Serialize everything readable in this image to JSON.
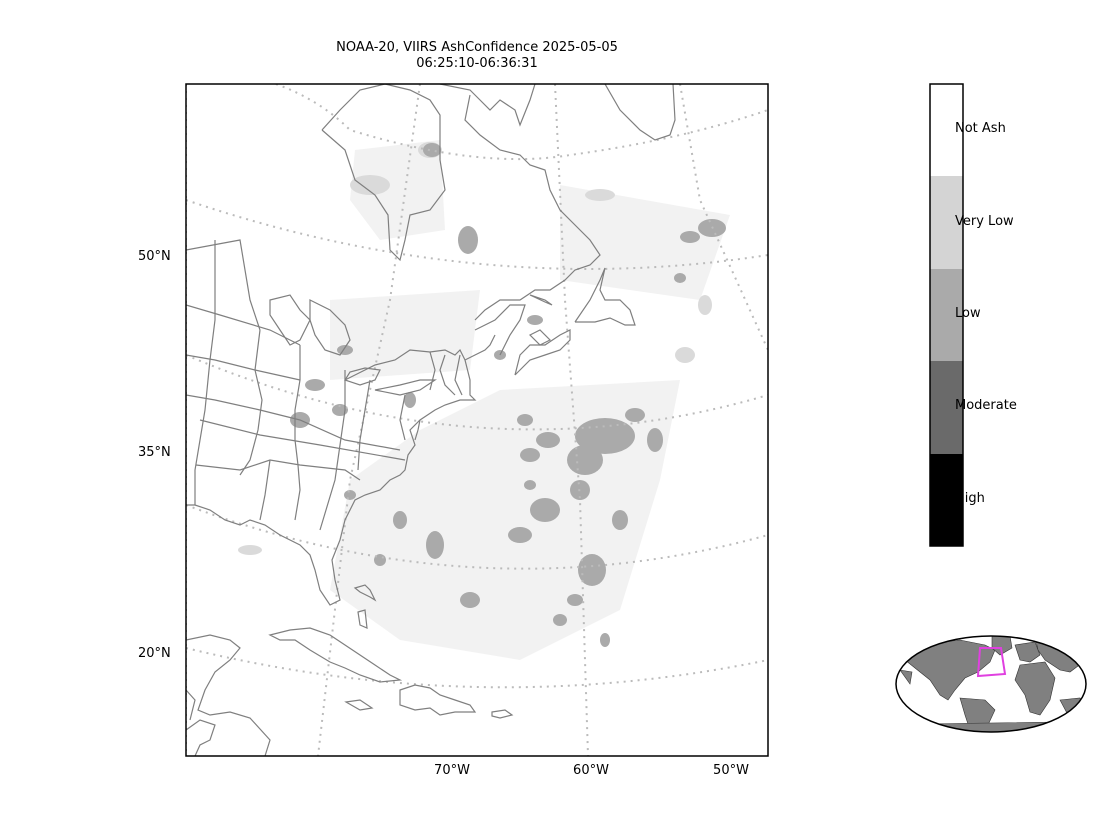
{
  "title": {
    "line1": "NOAA-20, VIIRS AshConfidence 2025-05-05",
    "line2": "06:25:10-06:36:31"
  },
  "axes": {
    "lat_labels": [
      "50°N",
      "35°N",
      "20°N"
    ],
    "lon_labels": [
      "70°W",
      "60°W",
      "50°W"
    ]
  },
  "colorbar": {
    "categories": [
      {
        "label": "Not Ash",
        "color": "#ffffff"
      },
      {
        "label": "Very Low",
        "color": "#d4d4d4"
      },
      {
        "label": "Low",
        "color": "#aaaaaa"
      },
      {
        "label": "Moderate",
        "color": "#6a6a6a"
      },
      {
        "label": "High",
        "color": "#000000"
      }
    ]
  },
  "colors": {
    "coastline": "#7f7f7f",
    "gridline": "#bbbbbb",
    "ash_very_low": "#d4d4d4",
    "ash_low": "#aaaaaa",
    "inset_land": "#808080",
    "inset_highlight": "#e040e0"
  }
}
